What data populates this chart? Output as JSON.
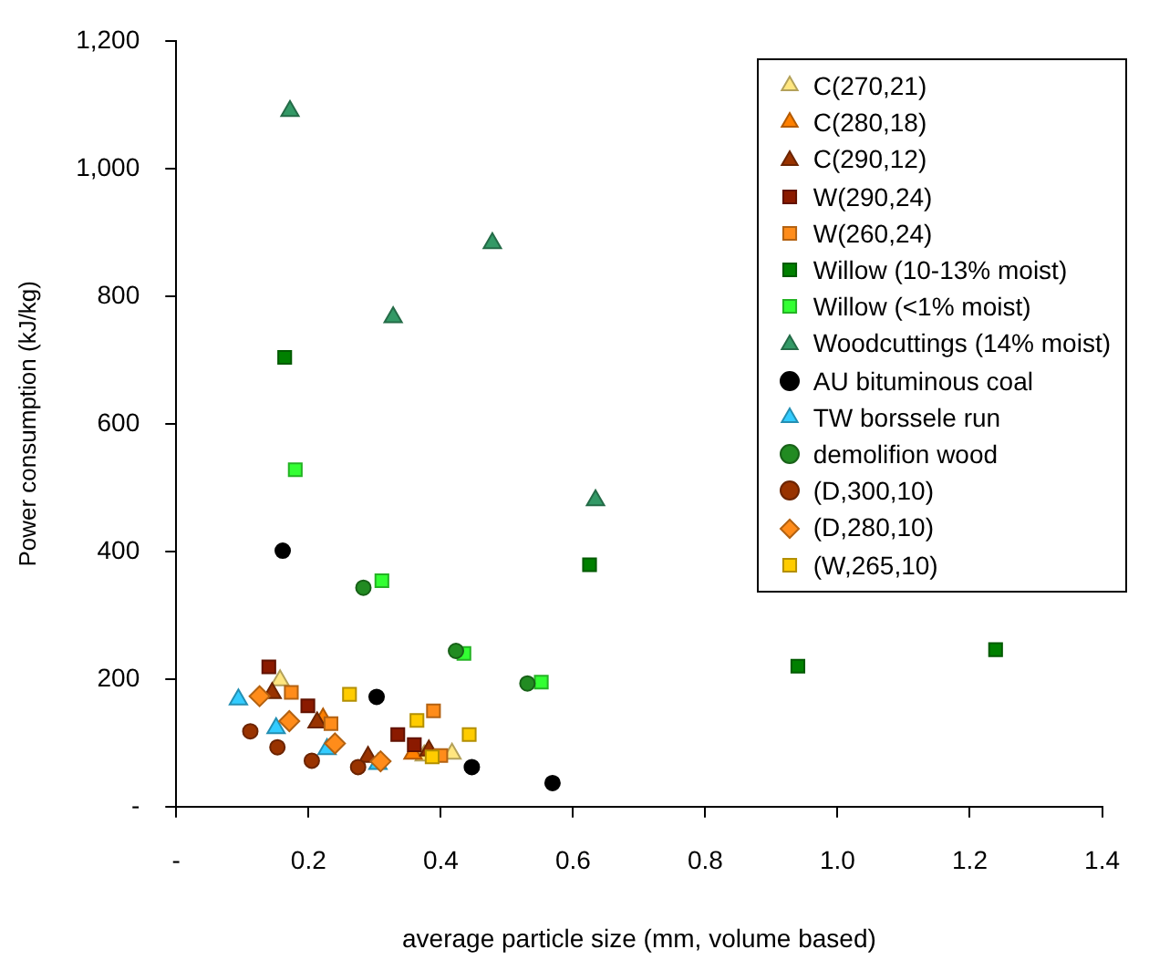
{
  "chart_data": {
    "type": "scatter",
    "xlabel": "average particle size (mm, volume based)",
    "ylabel": "Power consumption (kJ/kg)",
    "xlim": [
      0,
      1.4
    ],
    "xticks": [
      {
        "value": 0,
        "label": "-"
      },
      0.2,
      0.4,
      0.6,
      0.8,
      {
        "value": 1,
        "label": "1.0"
      },
      1.2,
      1.4
    ],
    "ylim": [
      0,
      1200
    ],
    "yticks": [
      {
        "value": 0,
        "label": "-"
      },
      200,
      400,
      600,
      800,
      {
        "value": 1000,
        "label": "1,000"
      },
      {
        "value": 1200,
        "label": "1,200"
      }
    ],
    "grid": false,
    "legend": "top right",
    "series": [
      {
        "name": "C(270,21)",
        "color": "#ffe680",
        "marker": "triangle",
        "x": [
          0.157,
          0.375,
          0.417
        ],
        "values": [
          198,
          80,
          83
        ]
      },
      {
        "name": "C(280,18)",
        "color": "#ff8000",
        "marker": "triangle",
        "x": [
          0.222,
          0.358
        ],
        "values": [
          138,
          83
        ]
      },
      {
        "name": "C(290,12)",
        "color": "#993300",
        "marker": "triangle",
        "x": [
          0.145,
          0.213,
          0.29,
          0.382
        ],
        "values": [
          178,
          132,
          78,
          88
        ]
      },
      {
        "name": "W(290,24)",
        "color": "#8b1a00",
        "marker": "square",
        "x": [
          0.14,
          0.199,
          0.335,
          0.36
        ],
        "values": [
          219,
          158,
          113,
          97
        ]
      },
      {
        "name": "W(260,24)",
        "color": "#ff8c1a",
        "marker": "square",
        "x": [
          0.174,
          0.234,
          0.389,
          0.4
        ],
        "values": [
          179,
          130,
          150,
          80
        ]
      },
      {
        "name": "Willow (10-13% moist)",
        "color": "#008000",
        "marker": "square",
        "x": [
          0.164,
          0.625,
          0.94,
          1.239
        ],
        "values": [
          704,
          379,
          220,
          246
        ]
      },
      {
        "name": "Willow (<1% moist)",
        "color": "#33ff33",
        "marker": "square",
        "x": [
          0.18,
          0.311,
          0.435,
          0.552
        ],
        "values": [
          528,
          354,
          240,
          195
        ]
      },
      {
        "name": "Woodcuttings (14% moist)",
        "color": "#339966",
        "marker": "triangle",
        "x": [
          0.172,
          0.328,
          0.478,
          0.634
        ],
        "values": [
          1090,
          767,
          883,
          480
        ]
      },
      {
        "name": "AU bituminous coal",
        "color": "#000000",
        "marker": "circle",
        "x": [
          0.161,
          0.303,
          0.447,
          0.569
        ],
        "values": [
          401,
          172,
          62,
          37
        ]
      },
      {
        "name": "TW borssele run",
        "color": "#33ccff",
        "marker": "triangle",
        "x": [
          0.094,
          0.151,
          0.228,
          0.305
        ],
        "values": [
          168,
          123,
          90,
          67
        ]
      },
      {
        "name": "demolifion wood",
        "color": "#228b22",
        "marker": "circle",
        "x": [
          0.283,
          0.423,
          0.531
        ],
        "values": [
          343,
          244,
          193
        ]
      },
      {
        "name": "(D,300,10)",
        "color": "#993300",
        "marker": "circle",
        "x": [
          0.112,
          0.153,
          0.205,
          0.275
        ],
        "values": [
          118,
          93,
          72,
          62
        ]
      },
      {
        "name": "(D,280,10)",
        "color": "#ff8c1a",
        "marker": "diamond",
        "x": [
          0.126,
          0.171,
          0.24,
          0.309
        ],
        "values": [
          173,
          134,
          99,
          71
        ]
      },
      {
        "name": "(W,265,10)",
        "color": "#ffcc00",
        "marker": "square",
        "x": [
          0.262,
          0.364,
          0.443,
          0.387
        ],
        "values": [
          176,
          135,
          113,
          78
        ]
      }
    ]
  }
}
